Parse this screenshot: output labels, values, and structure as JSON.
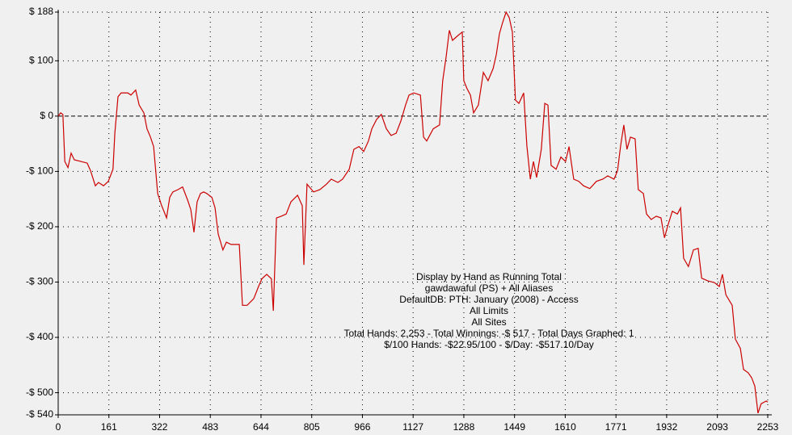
{
  "chart_data": {
    "type": "line",
    "annotations": [
      "Display by Hand as Running Total",
      "gawdawaful (PS) + All Aliases",
      "DefaultDB: PTH: January (2008) - Access",
      "All Limits",
      "All Sites",
      "Total Hands: 2,253 - Total Winnings: -$ 517 - Total Days Graphed: 1",
      "$/100 Hands: -$22.95/100 - $/Day: -$517.10/Day"
    ],
    "xlim": [
      0,
      2253
    ],
    "xticks": [
      0,
      161,
      322,
      483,
      644,
      805,
      966,
      1127,
      1288,
      1449,
      1610,
      1771,
      1932,
      2093,
      2253
    ],
    "ylim": [
      -540,
      188
    ],
    "yticks": [
      {
        "value": 188,
        "label": "$ 188"
      },
      {
        "value": 100,
        "label": "$ 100"
      },
      {
        "value": 0,
        "label": "$ 0"
      },
      {
        "value": -100,
        "label": "-$ 100"
      },
      {
        "value": -200,
        "label": "-$ 200"
      },
      {
        "value": -300,
        "label": "-$ 300"
      },
      {
        "value": -400,
        "label": "-$ 400"
      },
      {
        "value": -500,
        "label": "-$ 500"
      },
      {
        "value": -540,
        "label": "-$ 540"
      }
    ],
    "grid": true,
    "x": [
      0,
      8,
      15,
      21,
      31,
      41,
      51,
      72,
      92,
      103,
      118,
      128,
      144,
      159,
      174,
      180,
      190,
      200,
      221,
      231,
      246,
      257,
      272,
      282,
      293,
      303,
      316,
      328,
      344,
      354,
      364,
      380,
      395,
      411,
      421,
      431,
      441,
      452,
      462,
      472,
      488,
      498,
      508,
      523,
      534,
      549,
      575,
      585,
      600,
      621,
      636,
      647,
      662,
      677,
      683,
      693,
      708,
      724,
      739,
      760,
      775,
      780,
      790,
      811,
      831,
      852,
      867,
      888,
      903,
      924,
      939,
      955,
      970,
      985,
      996,
      1011,
      1026,
      1042,
      1057,
      1073,
      1088,
      1103,
      1114,
      1129,
      1150,
      1160,
      1170,
      1191,
      1211,
      1221,
      1232,
      1242,
      1252,
      1268,
      1283,
      1288,
      1298,
      1309,
      1319,
      1334,
      1350,
      1365,
      1381,
      1391,
      1401,
      1411,
      1422,
      1432,
      1442,
      1452,
      1463,
      1478,
      1488,
      1499,
      1509,
      1519,
      1534,
      1545,
      1555,
      1565,
      1581,
      1596,
      1611,
      1622,
      1637,
      1653,
      1668,
      1688,
      1709,
      1729,
      1745,
      1765,
      1776,
      1786,
      1796,
      1806,
      1817,
      1832,
      1842,
      1858,
      1868,
      1883,
      1899,
      1914,
      1925,
      1935,
      1950,
      1966,
      1976,
      1986,
      2001,
      2017,
      2032,
      2043,
      2063,
      2084,
      2099,
      2109,
      2120,
      2140,
      2150,
      2166,
      2176,
      2191,
      2202,
      2212,
      2222,
      2232,
      2248,
      2253
    ],
    "series": [
      {
        "color": "#cc0000",
        "values": [
          0,
          6,
          3,
          -82,
          -93,
          -67,
          -79,
          -82,
          -85,
          -99,
          -126,
          -120,
          -126,
          -118,
          -96,
          -31,
          35,
          42,
          42,
          38,
          47,
          20,
          6,
          -23,
          -38,
          -55,
          -140,
          -161,
          -184,
          -147,
          -137,
          -133,
          -128,
          -152,
          -169,
          -210,
          -155,
          -140,
          -137,
          -140,
          -147,
          -166,
          -213,
          -242,
          -228,
          -232,
          -232,
          -342,
          -342,
          -330,
          -308,
          -294,
          -286,
          -294,
          -352,
          -184,
          -181,
          -177,
          -155,
          -143,
          -162,
          -269,
          -123,
          -137,
          -133,
          -123,
          -114,
          -120,
          -114,
          -96,
          -60,
          -55,
          -64,
          -45,
          -23,
          -6,
          3,
          -23,
          -35,
          -31,
          -9,
          20,
          38,
          42,
          38,
          -38,
          -45,
          -23,
          -16,
          64,
          108,
          155,
          137,
          145,
          152,
          64,
          50,
          38,
          6,
          20,
          79,
          64,
          86,
          111,
          149,
          169,
          188,
          178,
          152,
          29,
          23,
          42,
          -53,
          -114,
          -82,
          -111,
          -60,
          23,
          20,
          -89,
          -96,
          -74,
          -82,
          -55,
          -114,
          -118,
          -126,
          -131,
          -118,
          -114,
          -108,
          -114,
          -99,
          -53,
          -16,
          -60,
          -38,
          -41,
          -133,
          -140,
          -177,
          -187,
          -181,
          -184,
          -220,
          -199,
          -172,
          -177,
          -166,
          -257,
          -272,
          -242,
          -239,
          -293,
          -298,
          -301,
          -308,
          -286,
          -323,
          -342,
          -403,
          -420,
          -458,
          -464,
          -473,
          -488,
          -537,
          -520,
          -515,
          -517
        ]
      }
    ]
  }
}
